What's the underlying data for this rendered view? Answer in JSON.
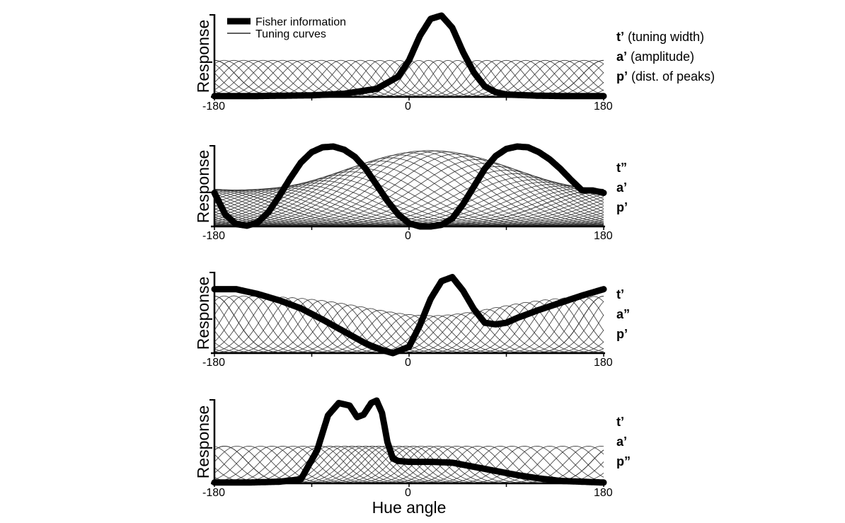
{
  "chart_data": [
    {
      "type": "line",
      "ylabel": "Response",
      "xlim": [
        -180,
        180
      ],
      "xticks": [
        "-180",
        "0",
        "180"
      ],
      "params": [
        {
          "sym": "t’",
          "desc": " (tuning width)"
        },
        {
          "sym": "a’",
          "desc": " (amplitude)"
        },
        {
          "sym": "p’",
          "desc": " (dist. of peaks)"
        }
      ],
      "legend": [
        {
          "label": "Fisher information",
          "style": "thick"
        },
        {
          "label": "Tuning curves",
          "style": "thin"
        }
      ],
      "tuning": {
        "n": 41,
        "base_width": 20,
        "width_amp": 0.3,
        "amplitude_base": 0.45,
        "amplitude_amp": 0.0,
        "peak_density_amp": 0.0,
        "center": 20
      },
      "fisher": {
        "x": [
          -180,
          -150,
          -120,
          -90,
          -60,
          -30,
          -10,
          0,
          10,
          20,
          30,
          40,
          50,
          60,
          70,
          80,
          90,
          120,
          150,
          180
        ],
        "y": [
          0.01,
          0.01,
          0.015,
          0.02,
          0.04,
          0.1,
          0.25,
          0.45,
          0.75,
          0.96,
          1.0,
          0.85,
          0.55,
          0.3,
          0.13,
          0.06,
          0.03,
          0.015,
          0.01,
          0.01
        ]
      }
    },
    {
      "type": "line",
      "ylabel": "Response",
      "xlim": [
        -180,
        180
      ],
      "xticks": [
        "-180",
        "0",
        "180"
      ],
      "params": [
        {
          "sym": "t”",
          "desc": ""
        },
        {
          "sym": "a’",
          "desc": ""
        },
        {
          "sym": "p’",
          "desc": ""
        }
      ],
      "tuning": {
        "n": 41,
        "base_width": 55,
        "width_amp": 0.0,
        "amplitude_base": 0.45,
        "amplitude_amp": 0.5,
        "peak_density_amp": 0.0,
        "center": 20
      },
      "fisher": {
        "x": [
          -180,
          -170,
          -160,
          -150,
          -140,
          -130,
          -120,
          -110,
          -100,
          -90,
          -80,
          -70,
          -60,
          -50,
          -40,
          -30,
          -20,
          -10,
          0,
          10,
          20,
          30,
          40,
          50,
          60,
          70,
          80,
          90,
          100,
          110,
          120,
          130,
          140,
          150,
          160,
          170,
          180
        ],
        "y": [
          0.42,
          0.15,
          0.03,
          0.01,
          0.05,
          0.18,
          0.38,
          0.6,
          0.8,
          0.93,
          0.99,
          1.0,
          0.96,
          0.87,
          0.72,
          0.52,
          0.32,
          0.15,
          0.04,
          0.0,
          0.0,
          0.02,
          0.1,
          0.28,
          0.5,
          0.72,
          0.88,
          0.97,
          1.0,
          0.99,
          0.93,
          0.84,
          0.72,
          0.58,
          0.45,
          0.45,
          0.42
        ]
      }
    },
    {
      "type": "line",
      "ylabel": "Response",
      "xlim": [
        -180,
        180
      ],
      "xticks": [
        "-180",
        "0",
        "180"
      ],
      "params": [
        {
          "sym": "t’",
          "desc": ""
        },
        {
          "sym": "a”",
          "desc": ""
        },
        {
          "sym": "p’",
          "desc": ""
        }
      ],
      "tuning": {
        "n": 41,
        "base_width": 20,
        "width_amp": 0.0,
        "amplitude_base": 0.72,
        "amplitude_amp": -0.25,
        "peak_density_amp": 0.0,
        "center": 20
      },
      "fisher": {
        "x": [
          -180,
          -160,
          -140,
          -120,
          -100,
          -80,
          -60,
          -40,
          -25,
          -15,
          0,
          10,
          20,
          30,
          40,
          50,
          60,
          70,
          80,
          90,
          100,
          120,
          140,
          160,
          180
        ],
        "y": [
          0.8,
          0.8,
          0.74,
          0.66,
          0.56,
          0.42,
          0.27,
          0.12,
          0.04,
          0.0,
          0.08,
          0.35,
          0.68,
          0.9,
          0.95,
          0.78,
          0.55,
          0.38,
          0.36,
          0.38,
          0.44,
          0.54,
          0.63,
          0.72,
          0.8
        ]
      }
    },
    {
      "type": "line",
      "ylabel": "Response",
      "xlabel": "Hue angle",
      "xlim": [
        -180,
        180
      ],
      "xticks": [
        "-180",
        "0",
        "180"
      ],
      "params": [
        {
          "sym": "t’",
          "desc": ""
        },
        {
          "sym": "a’",
          "desc": ""
        },
        {
          "sym": "p”",
          "desc": ""
        }
      ],
      "tuning": {
        "n": 41,
        "base_width": 20,
        "width_amp": 0.0,
        "amplitude_base": 0.45,
        "amplitude_amp": 0.0,
        "peak_density_amp": 0.6,
        "center": -30
      },
      "fisher": {
        "x": [
          -180,
          -150,
          -120,
          -100,
          -85,
          -75,
          -65,
          -55,
          -48,
          -42,
          -35,
          -30,
          -25,
          -20,
          -15,
          -10,
          0,
          20,
          40,
          60,
          80,
          100,
          120,
          140,
          160,
          180
        ],
        "y": [
          0.01,
          0.01,
          0.02,
          0.05,
          0.4,
          0.82,
          0.97,
          0.94,
          0.8,
          0.83,
          0.97,
          1.0,
          0.85,
          0.5,
          0.3,
          0.27,
          0.26,
          0.26,
          0.25,
          0.2,
          0.15,
          0.1,
          0.06,
          0.03,
          0.02,
          0.01
        ]
      }
    }
  ]
}
